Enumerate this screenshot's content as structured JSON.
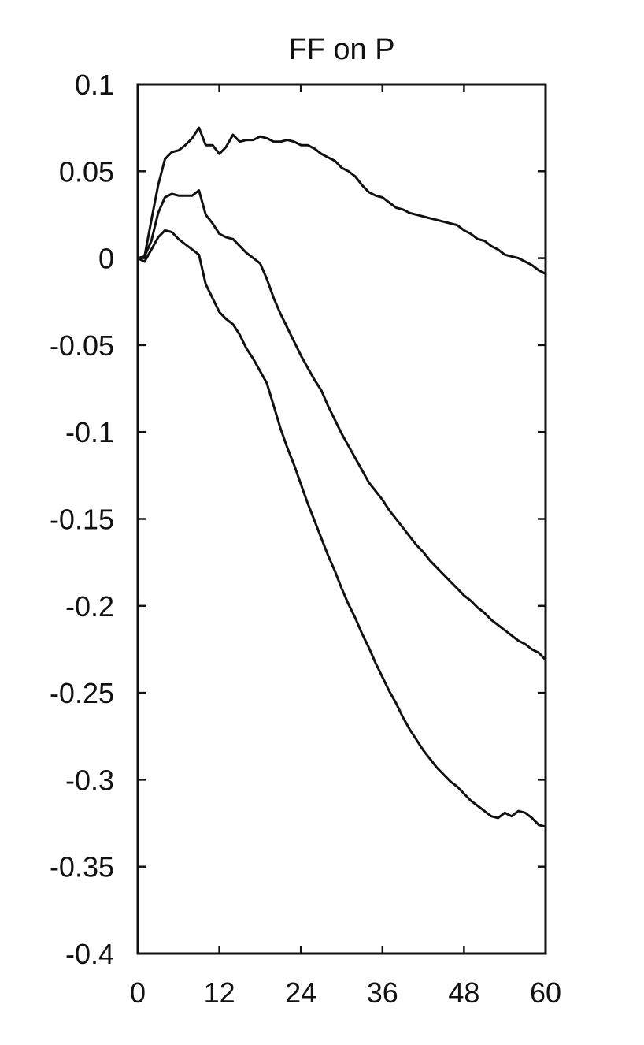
{
  "chart_data": {
    "type": "line",
    "title": "FF on P",
    "xlabel": "",
    "ylabel": "",
    "xlim": [
      0,
      60
    ],
    "ylim": [
      -0.4,
      0.1
    ],
    "x_ticks": [
      0,
      12,
      24,
      36,
      48,
      60
    ],
    "x_tick_labels": [
      "0",
      "12",
      "24",
      "36",
      "48",
      "60"
    ],
    "y_ticks": [
      0.1,
      0.05,
      0,
      -0.05,
      -0.1,
      -0.15,
      -0.2,
      -0.25,
      -0.3,
      -0.35,
      -0.4
    ],
    "y_tick_labels": [
      "0.1",
      "0.05",
      "0",
      "-0.05",
      "-0.1",
      "-0.15",
      "-0.2",
      "-0.25",
      "-0.3",
      "-0.35",
      "-0.4"
    ],
    "grid": false,
    "series": [
      {
        "role": "upper",
        "x": [
          0,
          1,
          2,
          3,
          4,
          5,
          6,
          7,
          8,
          9,
          10,
          11,
          12,
          13,
          14,
          15,
          16,
          17,
          18,
          19,
          20,
          21,
          22,
          23,
          24,
          25,
          26,
          27,
          28,
          29,
          30,
          31,
          32,
          33,
          34,
          35,
          36,
          37,
          38,
          39,
          40,
          41,
          42,
          43,
          44,
          45,
          46,
          47,
          48,
          49,
          50,
          51,
          52,
          53,
          54,
          55,
          56,
          57,
          58,
          59,
          60
        ],
        "y": [
          0,
          0.001,
          0.022,
          0.042,
          0.057,
          0.061,
          0.062,
          0.065,
          0.069,
          0.075,
          0.065,
          0.065,
          0.06,
          0.064,
          0.071,
          0.067,
          0.068,
          0.068,
          0.07,
          0.069,
          0.067,
          0.067,
          0.068,
          0.067,
          0.065,
          0.065,
          0.063,
          0.06,
          0.058,
          0.056,
          0.052,
          0.05,
          0.047,
          0.042,
          0.038,
          0.036,
          0.035,
          0.032,
          0.029,
          0.028,
          0.026,
          0.025,
          0.024,
          0.023,
          0.022,
          0.021,
          0.02,
          0.019,
          0.016,
          0.014,
          0.011,
          0.01,
          0.007,
          0.005,
          0.002,
          0.001,
          0,
          -0.002,
          -0.004,
          -0.007,
          -0.009
        ]
      },
      {
        "role": "median",
        "x": [
          0,
          1,
          2,
          3,
          4,
          5,
          6,
          7,
          8,
          9,
          10,
          11,
          12,
          13,
          14,
          15,
          16,
          17,
          18,
          19,
          20,
          21,
          22,
          23,
          24,
          25,
          26,
          27,
          28,
          29,
          30,
          31,
          32,
          33,
          34,
          35,
          36,
          37,
          38,
          39,
          40,
          41,
          42,
          43,
          44,
          45,
          46,
          47,
          48,
          49,
          50,
          51,
          52,
          53,
          54,
          55,
          56,
          57,
          58,
          59,
          60
        ],
        "y": [
          0,
          0.001,
          0.01,
          0.026,
          0.035,
          0.037,
          0.036,
          0.036,
          0.036,
          0.039,
          0.025,
          0.02,
          0.014,
          0.012,
          0.011,
          0.007,
          0.003,
          0,
          -0.003,
          -0.012,
          -0.023,
          -0.032,
          -0.04,
          -0.048,
          -0.056,
          -0.063,
          -0.07,
          -0.076,
          -0.085,
          -0.093,
          -0.101,
          -0.108,
          -0.115,
          -0.122,
          -0.129,
          -0.134,
          -0.139,
          -0.145,
          -0.15,
          -0.155,
          -0.16,
          -0.165,
          -0.169,
          -0.174,
          -0.178,
          -0.182,
          -0.186,
          -0.19,
          -0.194,
          -0.197,
          -0.201,
          -0.204,
          -0.208,
          -0.211,
          -0.214,
          -0.217,
          -0.22,
          -0.222,
          -0.225,
          -0.227,
          -0.231
        ]
      },
      {
        "role": "lower",
        "x": [
          0,
          1,
          2,
          3,
          4,
          5,
          6,
          7,
          8,
          9,
          10,
          11,
          12,
          13,
          14,
          15,
          16,
          17,
          18,
          19,
          20,
          21,
          22,
          23,
          24,
          25,
          26,
          27,
          28,
          29,
          30,
          31,
          32,
          33,
          34,
          35,
          36,
          37,
          38,
          39,
          40,
          41,
          42,
          43,
          44,
          45,
          46,
          47,
          48,
          49,
          50,
          51,
          52,
          53,
          54,
          55,
          56,
          57,
          58,
          59,
          60
        ],
        "y": [
          0,
          -0.002,
          0.005,
          0.012,
          0.016,
          0.015,
          0.011,
          0.008,
          0.005,
          0.002,
          -0.015,
          -0.023,
          -0.031,
          -0.035,
          -0.038,
          -0.044,
          -0.052,
          -0.058,
          -0.065,
          -0.072,
          -0.085,
          -0.098,
          -0.109,
          -0.119,
          -0.13,
          -0.141,
          -0.151,
          -0.161,
          -0.171,
          -0.18,
          -0.19,
          -0.199,
          -0.207,
          -0.216,
          -0.224,
          -0.233,
          -0.241,
          -0.249,
          -0.256,
          -0.264,
          -0.271,
          -0.277,
          -0.283,
          -0.288,
          -0.293,
          -0.297,
          -0.301,
          -0.304,
          -0.308,
          -0.312,
          -0.315,
          -0.318,
          -0.321,
          -0.322,
          -0.319,
          -0.321,
          -0.318,
          -0.319,
          -0.322,
          -0.326,
          -0.327
        ]
      }
    ]
  }
}
